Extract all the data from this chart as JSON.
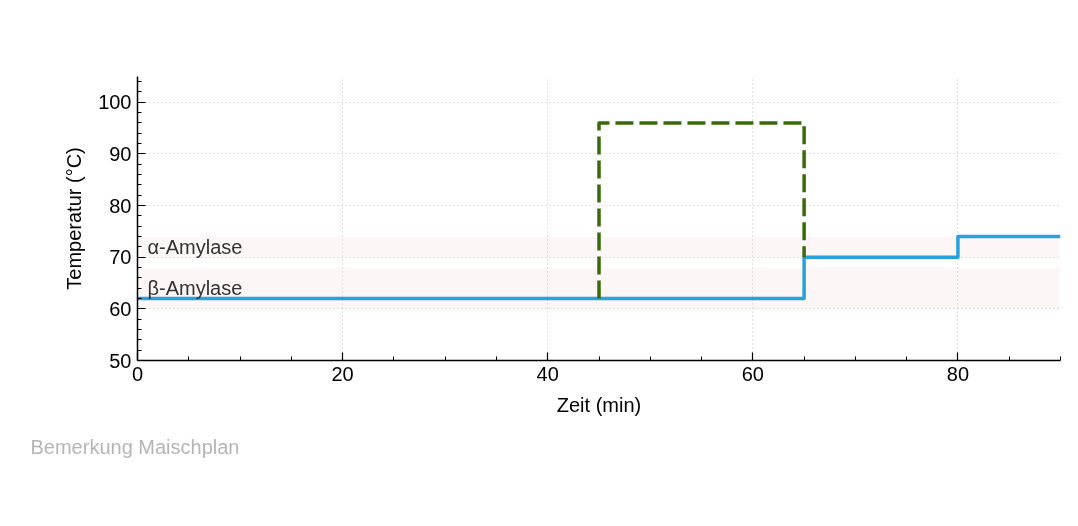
{
  "chart_data": {
    "type": "step",
    "xlabel": "Zeit (min)",
    "ylabel": "Temperatur (°C)",
    "xlim": [
      0,
      90
    ],
    "ylim": [
      50,
      105
    ],
    "xticks": [
      0,
      {
        "value": 5,
        "label": null
      },
      {
        "value": 10,
        "label": null
      },
      {
        "value": 15,
        "label": null
      },
      20,
      {
        "value": 25,
        "label": null
      },
      {
        "value": 30,
        "label": null
      },
      {
        "value": 35,
        "label": null
      },
      40,
      {
        "value": 45,
        "label": null
      },
      {
        "value": 50,
        "label": null
      },
      {
        "value": 55,
        "label": null
      },
      60,
      {
        "value": 65,
        "label": null
      },
      {
        "value": 70,
        "label": null
      },
      {
        "value": 75,
        "label": null
      },
      80,
      {
        "value": 85,
        "label": null
      },
      {
        "value": 90,
        "label": null
      }
    ],
    "yticks": [
      50,
      {
        "value": 52,
        "label": null
      },
      {
        "value": 54,
        "label": null
      },
      {
        "value": 56,
        "label": null
      },
      {
        "value": 58,
        "label": null
      },
      60,
      {
        "value": 62,
        "label": null
      },
      {
        "value": 64,
        "label": null
      },
      {
        "value": 66,
        "label": null
      },
      {
        "value": 68,
        "label": null
      },
      70,
      {
        "value": 72,
        "label": null
      },
      {
        "value": 74,
        "label": null
      },
      {
        "value": 76,
        "label": null
      },
      {
        "value": 78,
        "label": null
      },
      80,
      {
        "value": 82,
        "label": null
      },
      {
        "value": 84,
        "label": null
      },
      {
        "value": 86,
        "label": null
      },
      {
        "value": 88,
        "label": null
      },
      90,
      {
        "value": 92,
        "label": null
      },
      {
        "value": 94,
        "label": null
      },
      {
        "value": 96,
        "label": null
      },
      {
        "value": 98,
        "label": null
      },
      100,
      {
        "value": 102,
        "label": null
      },
      {
        "value": 104,
        "label": null
      }
    ],
    "grid": true,
    "series": [
      {
        "x": [
          0,
          65,
          80,
          90
        ],
        "values": [
          62,
          70,
          74,
          74
        ],
        "color": "#28a1df",
        "line_style": "solid"
      },
      {
        "type": "line",
        "x": [
          45,
          45,
          65,
          65
        ],
        "values": [
          62,
          96,
          96,
          70
        ],
        "color": "#3a6a08",
        "line_style": "dashed"
      }
    ],
    "bands": [
      {
        "axis": "y",
        "from": 70,
        "to": 74,
        "label": "α-Amylase",
        "color": "#fdf6f6"
      },
      {
        "axis": "y",
        "from": 60,
        "to": 68,
        "label": "β-Amylase",
        "color": "#fdf6f6"
      }
    ],
    "annotations": [
      "Bemerkung Maischplan"
    ]
  }
}
